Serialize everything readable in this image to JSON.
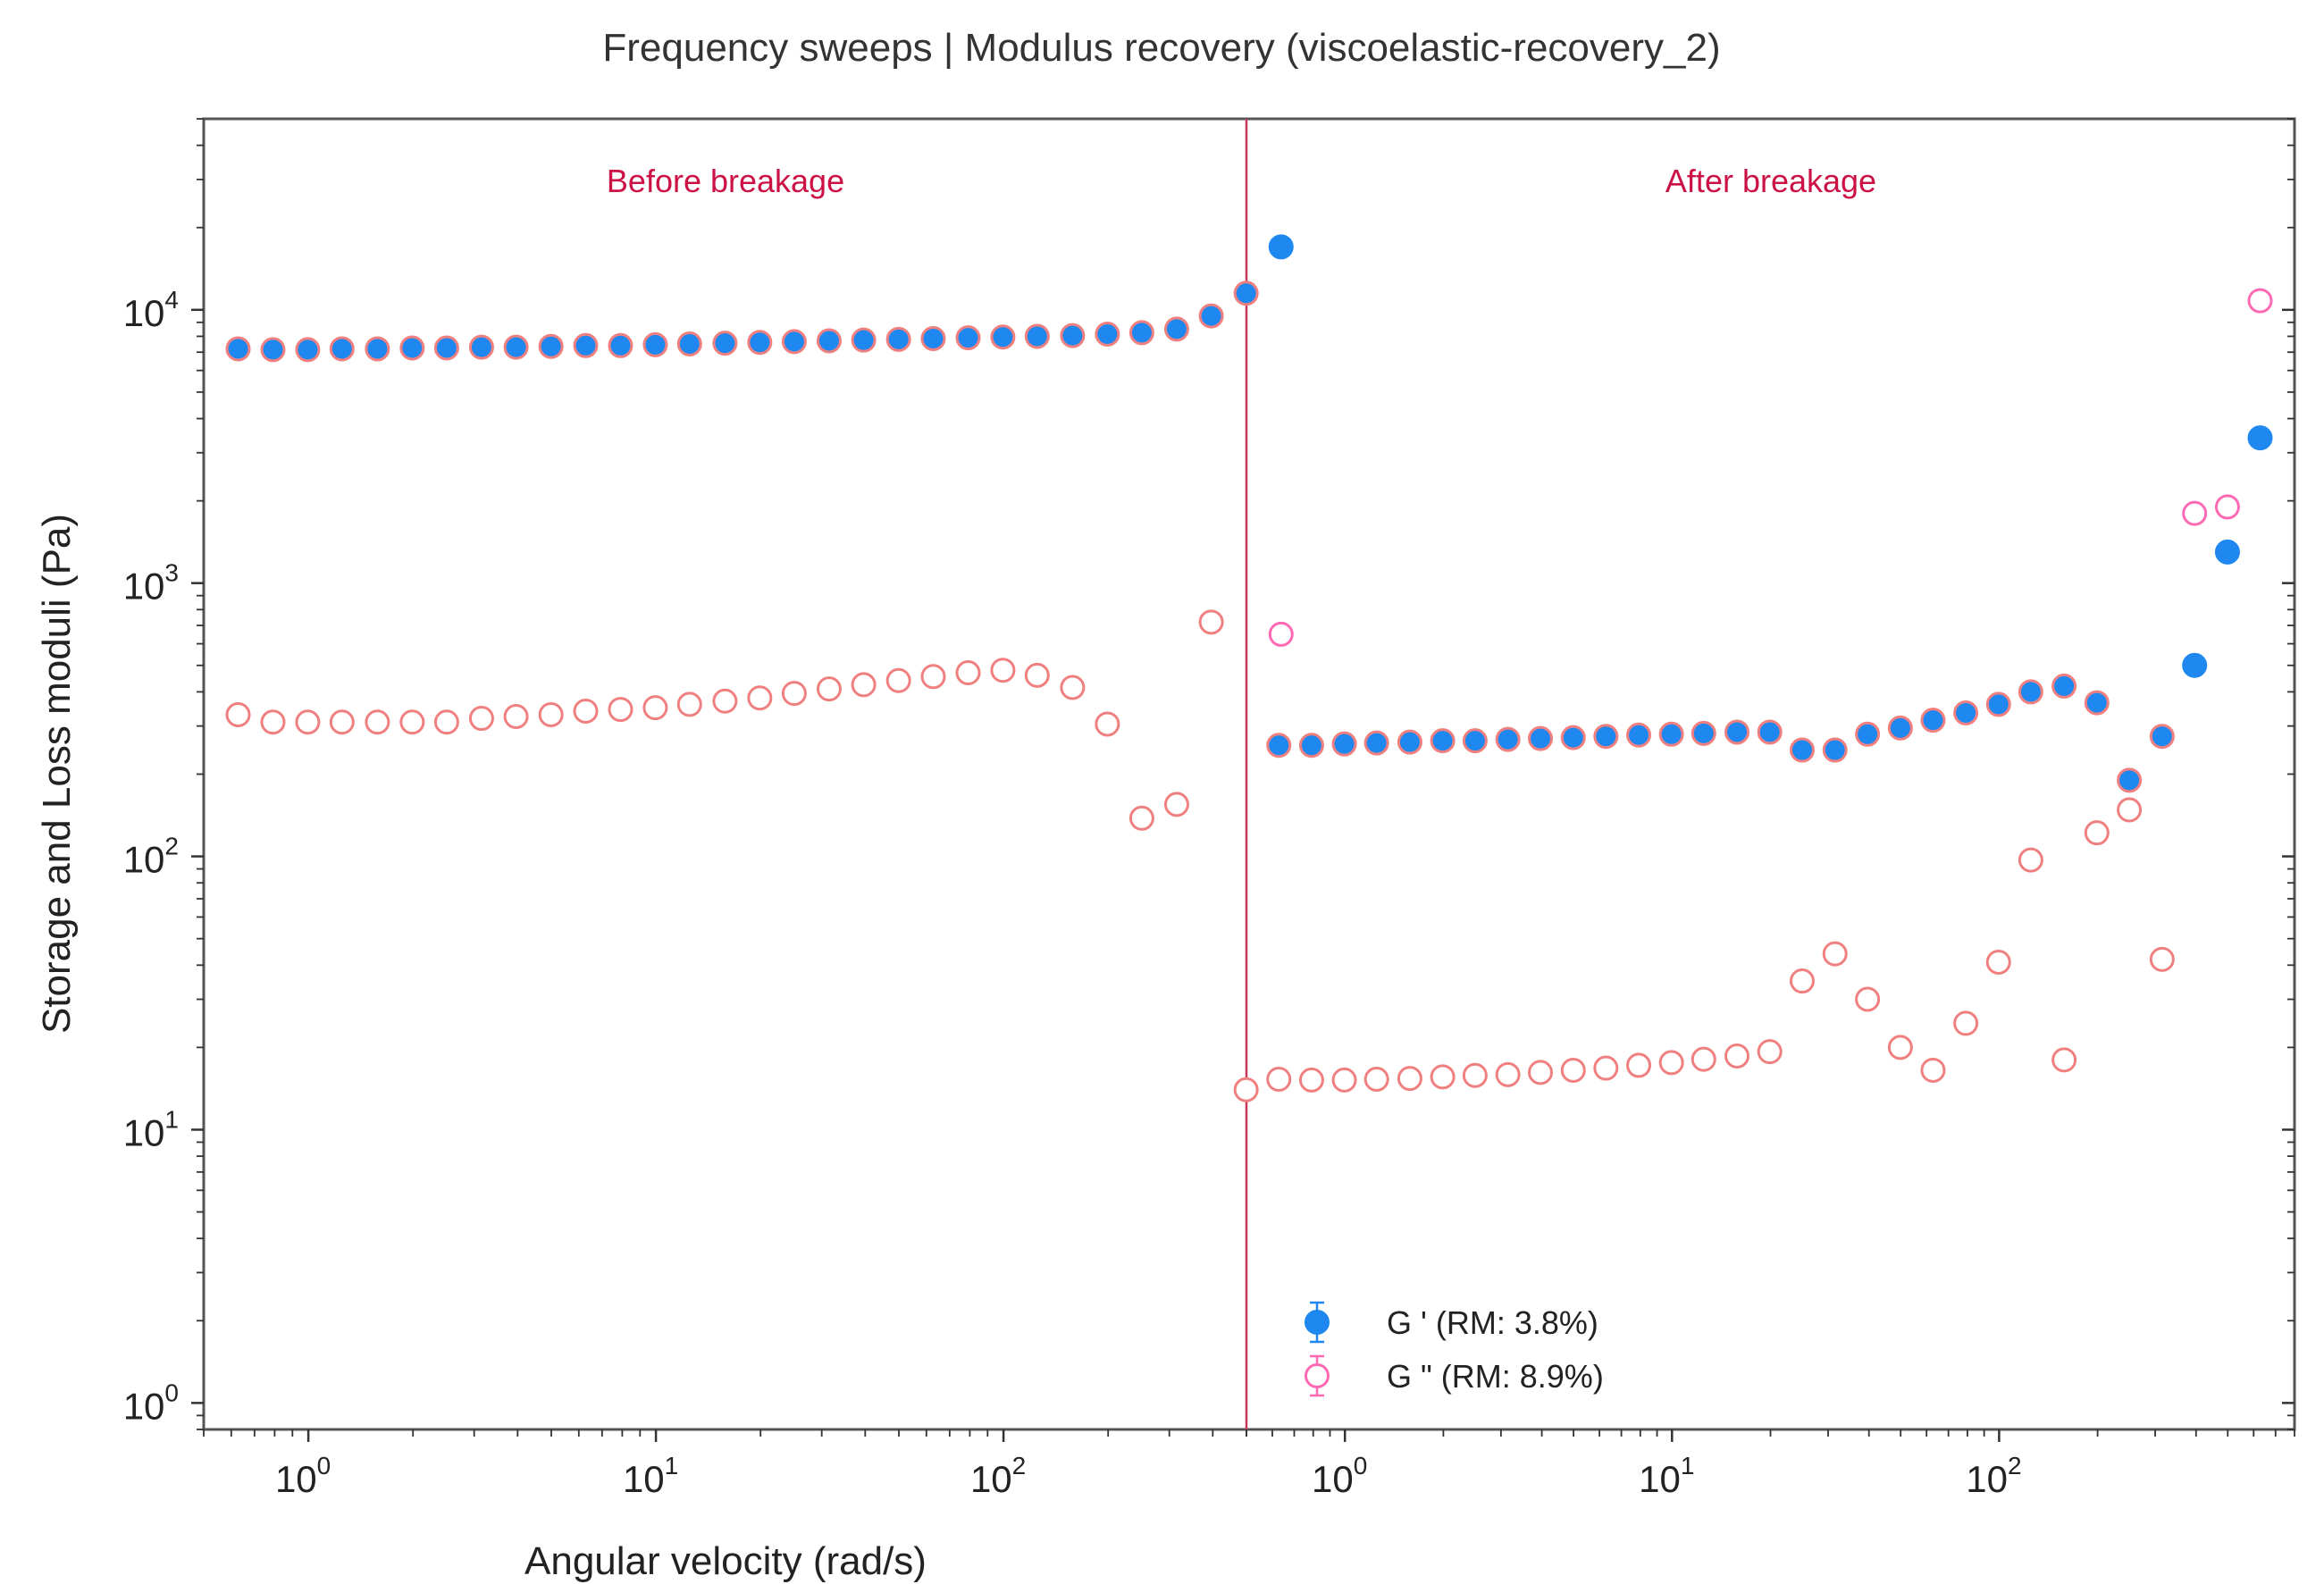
{
  "chart_data": {
    "type": "scatter",
    "title": "Frequency sweeps | Modulus recovery (viscoelastic-recovery_2)",
    "xlabel": "Angular velocity (rad/s)",
    "ylabel": "Storage and Loss moduli (Pa)",
    "x_scale": "log",
    "y_scale": "log",
    "ylim": [
      0.8,
      50000
    ],
    "y_ticks": [
      1,
      10,
      100,
      1000,
      10000
    ],
    "grid": false,
    "legend_position": "lower-center",
    "divider_color": "#c8365a",
    "annotations": [
      {
        "text": "Before breakage",
        "color": "#cc1144"
      },
      {
        "text": "After breakage",
        "color": "#cc1144"
      }
    ],
    "series": [
      {
        "name": "G ' (RM: 3.8%)",
        "marker": "filled-circle",
        "color": "#1e88f0",
        "edge_color": "#f08080",
        "edge_color_high": "#1e88f0"
      },
      {
        "name": "G \" (RM: 8.9%)",
        "marker": "open-circle",
        "color": "#f08080",
        "color_high": "#ff69b4"
      }
    ],
    "panels": [
      {
        "label": "Before breakage",
        "xlim": [
          0.5,
          500
        ],
        "x_ticks": [
          1,
          10,
          100
        ],
        "x": [
          0.628,
          0.791,
          0.996,
          1.25,
          1.58,
          1.99,
          2.5,
          3.15,
          3.96,
          4.99,
          6.28,
          7.91,
          9.96,
          12.5,
          15.8,
          19.9,
          25,
          31.5,
          39.6,
          49.9,
          62.8,
          79.1,
          99.6,
          125,
          158,
          199,
          250,
          315,
          396,
          499
        ],
        "G_storage": [
          7200,
          7150,
          7150,
          7200,
          7200,
          7250,
          7250,
          7300,
          7300,
          7350,
          7400,
          7400,
          7450,
          7500,
          7550,
          7600,
          7650,
          7700,
          7750,
          7800,
          7850,
          7900,
          7950,
          8000,
          8050,
          8150,
          8250,
          8500,
          9500,
          11500
        ],
        "G_loss": [
          330,
          310,
          310,
          310,
          310,
          310,
          310,
          320,
          325,
          330,
          340,
          345,
          350,
          360,
          370,
          380,
          395,
          410,
          425,
          440,
          455,
          470,
          480,
          460,
          415,
          305,
          138,
          155,
          720,
          14
        ],
        "G_storage_extra": [
          {
            "x": 629,
            "y": 17000
          }
        ],
        "G_loss_extra": [
          {
            "x": 629,
            "y": 650
          }
        ]
      },
      {
        "label": "After breakage",
        "xlim": [
          0.5,
          800
        ],
        "x_ticks": [
          1,
          10,
          100
        ],
        "x": [
          0.628,
          0.791,
          0.996,
          1.25,
          1.58,
          1.99,
          2.5,
          3.15,
          3.96,
          4.99,
          6.28,
          7.91,
          9.96,
          12.5,
          15.8,
          19.9,
          25,
          31.5,
          39.6,
          49.9,
          62.8,
          79.1,
          99.6,
          125,
          158,
          199,
          250,
          315,
          396,
          499,
          628
        ],
        "G_storage": [
          255,
          255,
          258,
          260,
          262,
          265,
          265,
          268,
          270,
          272,
          275,
          278,
          280,
          282,
          285,
          285,
          245,
          245,
          280,
          295,
          315,
          335,
          360,
          400,
          420,
          365,
          190,
          275,
          500,
          1300,
          3400
        ],
        "G_loss": [
          15.3,
          15.2,
          15.2,
          15.3,
          15.4,
          15.6,
          15.8,
          15.9,
          16.2,
          16.5,
          16.8,
          17.2,
          17.6,
          18.1,
          18.6,
          19.3,
          35,
          44,
          30,
          20,
          16.5,
          24.5,
          41,
          97,
          18,
          122,
          148,
          42,
          1800,
          1900,
          10800
        ]
      }
    ]
  }
}
